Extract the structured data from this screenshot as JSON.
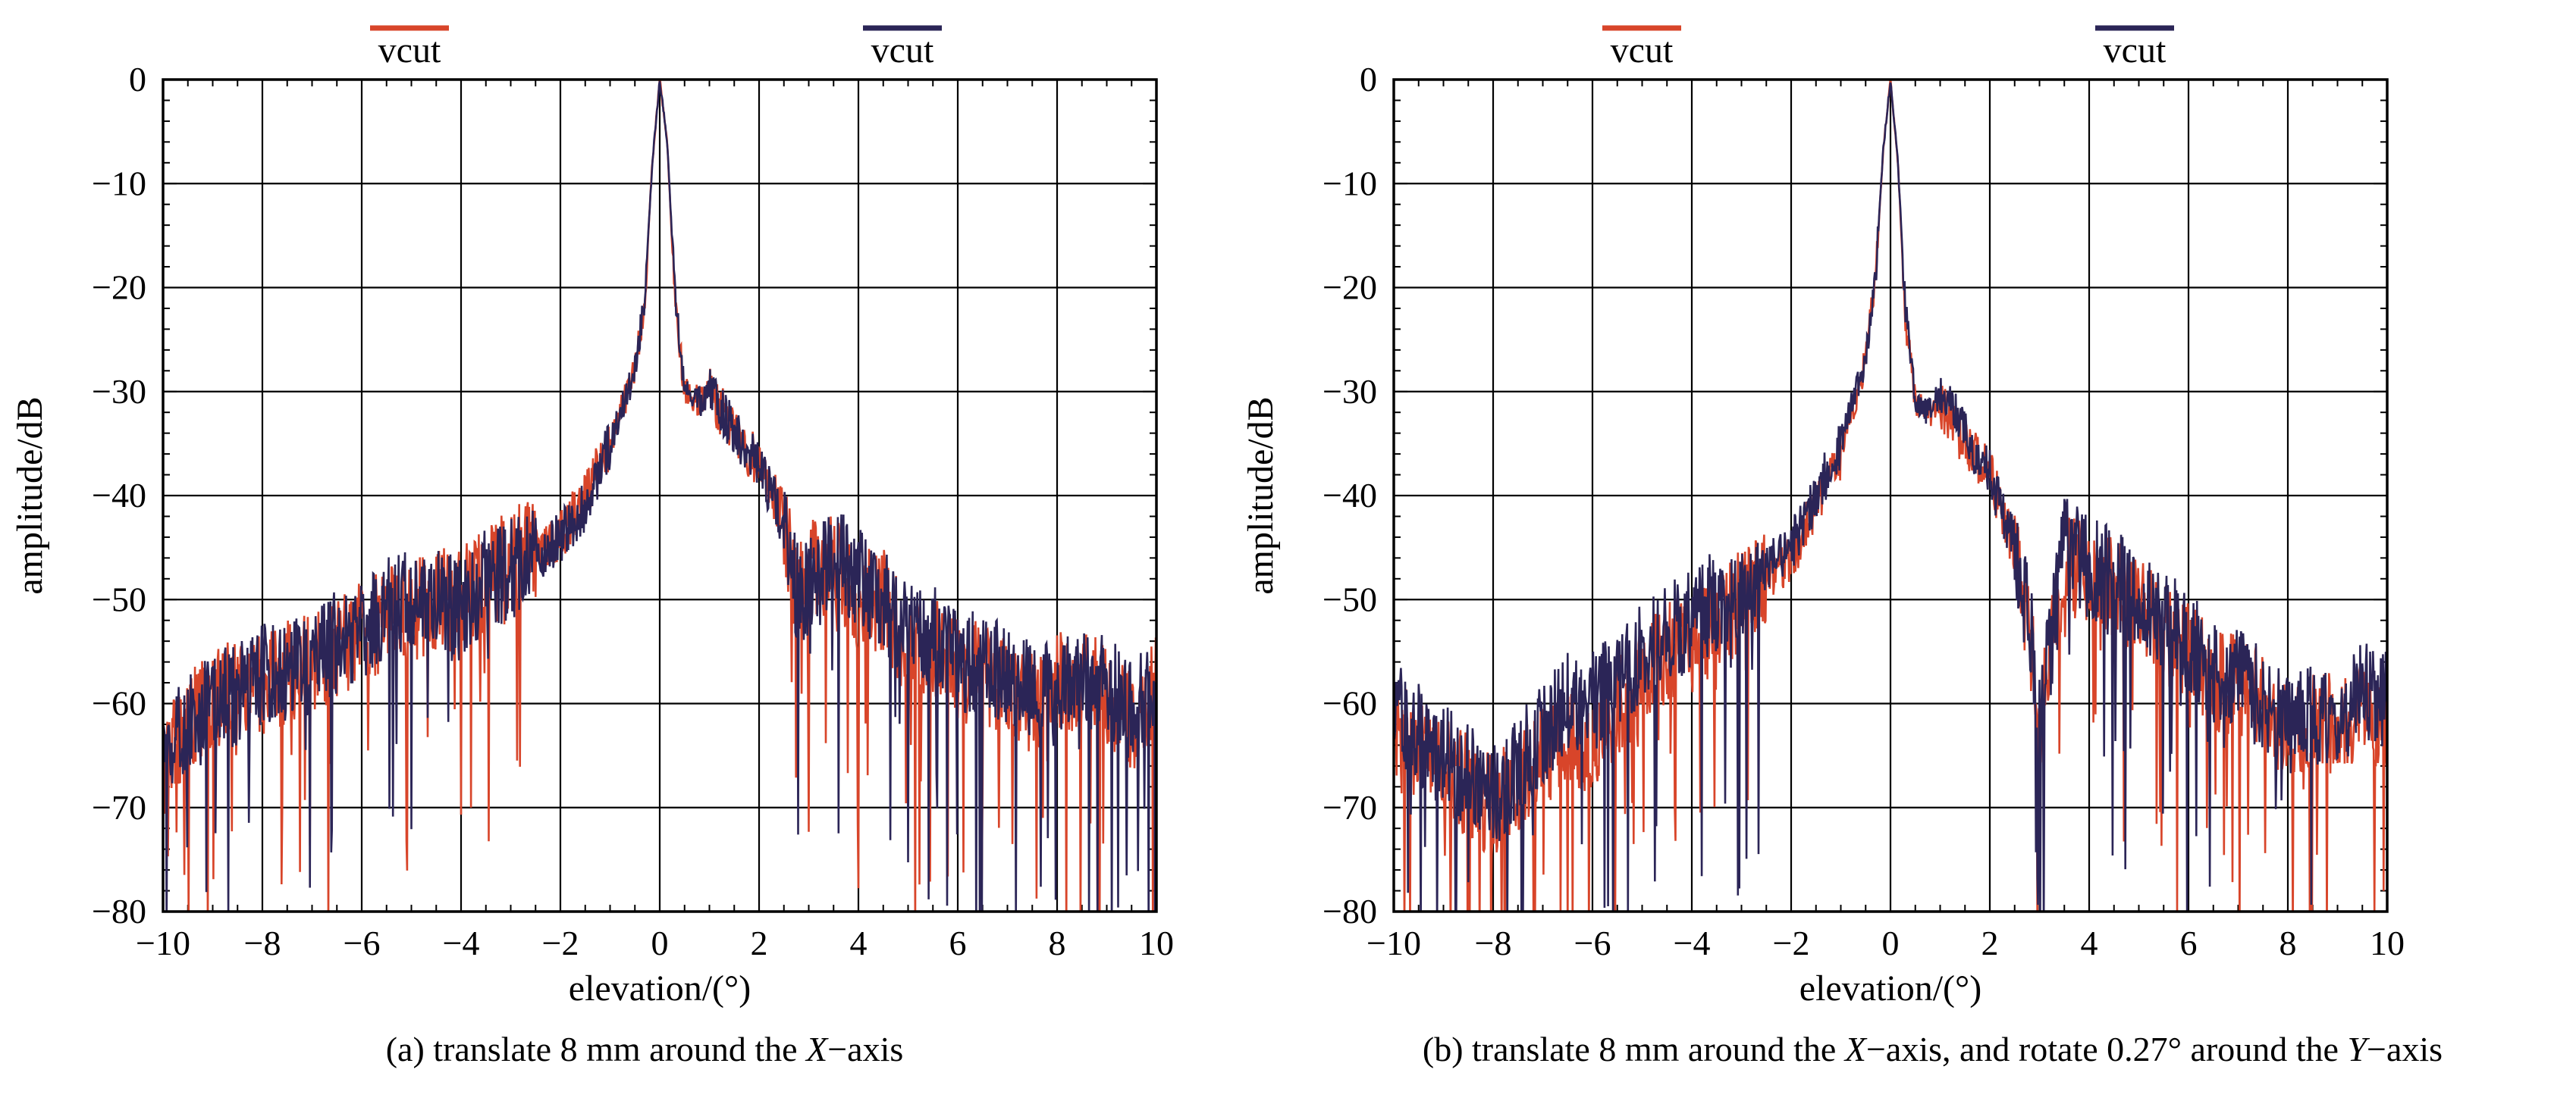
{
  "colors": {
    "series_red": "#d8452a",
    "series_navy": "#2b2557",
    "grid": "#000000",
    "background": "#ffffff"
  },
  "captions": [
    {
      "prefix": "(a) translate 8 mm around the ",
      "axis1": "X",
      "mid": "−axis",
      "axis2": "",
      "suffix": ""
    },
    {
      "prefix": "(b) translate 8 mm around the ",
      "axis1": "X",
      "mid": "−axis, and rotate 0.27° around the ",
      "axis2": "Y",
      "suffix": "−axis"
    }
  ],
  "chart_data": [
    {
      "type": "line",
      "xlabel": "elevation/(°)",
      "ylabel": "amplitude/dB",
      "xlim": [
        -10,
        10
      ],
      "ylim": [
        -80,
        0
      ],
      "xticks": [
        -10,
        -8,
        -6,
        -4,
        -2,
        0,
        2,
        4,
        6,
        8,
        10
      ],
      "yticks": [
        0,
        -10,
        -20,
        -30,
        -40,
        -50,
        -60,
        -70,
        -80
      ],
      "grid": true,
      "legend_position": "top",
      "series": [
        {
          "name": "vcut",
          "color": "#d8452a",
          "x": [
            -10,
            -9.5,
            -9,
            -8.5,
            -8,
            -7.5,
            -7,
            -6.5,
            -6,
            -5.5,
            -5,
            -4.5,
            -4,
            -3.5,
            -3,
            -2.5,
            -2,
            -1.5,
            -1,
            -0.5,
            -0.3,
            -0.15,
            0,
            0.15,
            0.3,
            0.5,
            0.8,
            1,
            1.5,
            2,
            2.5,
            2.8,
            3,
            3.5,
            4,
            4.5,
            5,
            5.5,
            6,
            6.5,
            7,
            7.5,
            8,
            8.5,
            9,
            9.5,
            10
          ],
          "y": [
            -66,
            -62,
            -60,
            -58,
            -58,
            -57,
            -56,
            -55,
            -53,
            -52,
            -51,
            -50,
            -50,
            -48,
            -46,
            -45,
            -44,
            -40,
            -35,
            -28,
            -21,
            -8,
            0,
            -6,
            -21,
            -30,
            -31,
            -30,
            -34,
            -37,
            -42,
            -50,
            -47,
            -47,
            -50,
            -50,
            -55,
            -54,
            -57,
            -57,
            -58,
            -60,
            -58,
            -58,
            -59,
            -62,
            -58
          ]
        },
        {
          "name": "vcut",
          "color": "#2b2557",
          "x": [
            -10,
            -9.5,
            -9,
            -8.5,
            -8,
            -7.5,
            -7,
            -6.5,
            -6,
            -5.5,
            -5,
            -4.5,
            -4,
            -3.5,
            -3,
            -2.5,
            -2,
            -1.5,
            -1,
            -0.5,
            -0.3,
            -0.15,
            0,
            0.15,
            0.3,
            0.5,
            0.8,
            1,
            1.5,
            2,
            2.5,
            2.8,
            3,
            3.5,
            4,
            4.5,
            5,
            5.5,
            6,
            6.5,
            7,
            7.5,
            8,
            8.5,
            9,
            9.5,
            10
          ],
          "y": [
            -65,
            -62,
            -60,
            -59,
            -57,
            -57,
            -56,
            -54,
            -53,
            -51,
            -50,
            -50,
            -51,
            -48,
            -47,
            -46,
            -44,
            -41,
            -35,
            -28,
            -21,
            -8,
            0,
            -6,
            -20,
            -30,
            -31,
            -30,
            -34,
            -37,
            -43,
            -50,
            -49,
            -46,
            -48,
            -50,
            -53,
            -53,
            -56,
            -56,
            -57,
            -59,
            -58,
            -57,
            -58,
            -61,
            -57
          ]
        }
      ]
    },
    {
      "type": "line",
      "xlabel": "elevation/(°)",
      "ylabel": "amplitude/dB",
      "xlim": [
        -10,
        10
      ],
      "ylim": [
        -80,
        0
      ],
      "xticks": [
        -10,
        -8,
        -6,
        -4,
        -2,
        0,
        2,
        4,
        6,
        8,
        10
      ],
      "yticks": [
        0,
        -10,
        -20,
        -30,
        -40,
        -50,
        -60,
        -70,
        -80
      ],
      "grid": true,
      "legend_position": "top",
      "series": [
        {
          "name": "vcut",
          "color": "#d8452a",
          "x": [
            -10,
            -9.5,
            -9,
            -8.5,
            -8,
            -7.5,
            -7,
            -6.5,
            -6,
            -5.5,
            -5,
            -4.5,
            -4,
            -3.5,
            -3,
            -2.5,
            -2,
            -1.5,
            -1,
            -0.5,
            -0.3,
            -0.15,
            0,
            0.15,
            0.3,
            0.5,
            0.8,
            1,
            1.5,
            2,
            2.5,
            2.8,
            3,
            3.5,
            4,
            4.5,
            5,
            5.5,
            6,
            6.5,
            7,
            7.5,
            8,
            8.5,
            9,
            9.5,
            10
          ],
          "y": [
            -62,
            -65,
            -66,
            -68,
            -70,
            -68,
            -65,
            -63,
            -64,
            -60,
            -58,
            -55,
            -54,
            -52,
            -50,
            -48,
            -46,
            -41,
            -36,
            -27,
            -19,
            -7,
            0,
            -8,
            -23,
            -31,
            -32,
            -31,
            -35,
            -38,
            -45,
            -53,
            -63,
            -46,
            -48,
            -49,
            -51,
            -53,
            -55,
            -58,
            -58,
            -60,
            -63,
            -62,
            -62,
            -60,
            -62
          ]
        },
        {
          "name": "vcut",
          "color": "#2b2557",
          "x": [
            -10,
            -9.5,
            -9,
            -8.5,
            -8,
            -7.5,
            -7,
            -6.5,
            -6,
            -5.5,
            -5,
            -4.5,
            -4,
            -3.5,
            -3,
            -2.5,
            -2,
            -1.5,
            -1,
            -0.5,
            -0.3,
            -0.15,
            0,
            0.15,
            0.3,
            0.5,
            0.8,
            1,
            1.5,
            2,
            2.5,
            2.8,
            3,
            3.5,
            4,
            4.5,
            5,
            5.5,
            6,
            6.5,
            7,
            7.5,
            8,
            8.5,
            9,
            9.5,
            10
          ],
          "y": [
            -61,
            -63,
            -65,
            -67,
            -69,
            -66,
            -63,
            -60,
            -60,
            -58,
            -55,
            -53,
            -52,
            -50,
            -49,
            -47,
            -45,
            -40,
            -35,
            -27,
            -19,
            -7,
            0,
            -8,
            -22,
            -31,
            -32,
            -30,
            -34,
            -38,
            -45,
            -52,
            -62,
            -45,
            -47,
            -48,
            -50,
            -52,
            -54,
            -57,
            -57,
            -60,
            -62,
            -61,
            -61,
            -59,
            -60
          ]
        }
      ]
    }
  ]
}
